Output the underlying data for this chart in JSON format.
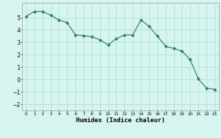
{
  "x": [
    0,
    1,
    2,
    3,
    4,
    5,
    6,
    7,
    8,
    9,
    10,
    11,
    12,
    13,
    14,
    15,
    16,
    17,
    18,
    19,
    20,
    21,
    22,
    23
  ],
  "y": [
    5.1,
    5.5,
    5.5,
    5.2,
    4.8,
    4.6,
    3.6,
    3.55,
    3.45,
    3.2,
    2.8,
    3.3,
    3.6,
    3.6,
    4.8,
    4.3,
    3.5,
    2.7,
    2.5,
    2.3,
    1.6,
    0.05,
    -0.7,
    -0.8
  ],
  "title": "",
  "xlabel": "Humidex (Indice chaleur)",
  "line_color": "#2d7d6e",
  "marker_color": "#2d7d6e",
  "bg_color": "#d6f5f0",
  "grid_color": "#b8e0da",
  "ylim": [
    -2.5,
    6.2
  ],
  "xlim": [
    -0.5,
    23.5
  ],
  "yticks": [
    -2,
    -1,
    0,
    1,
    2,
    3,
    4,
    5
  ],
  "xticks": [
    0,
    1,
    2,
    3,
    4,
    5,
    6,
    7,
    8,
    9,
    10,
    11,
    12,
    13,
    14,
    15,
    16,
    17,
    18,
    19,
    20,
    21,
    22,
    23
  ]
}
